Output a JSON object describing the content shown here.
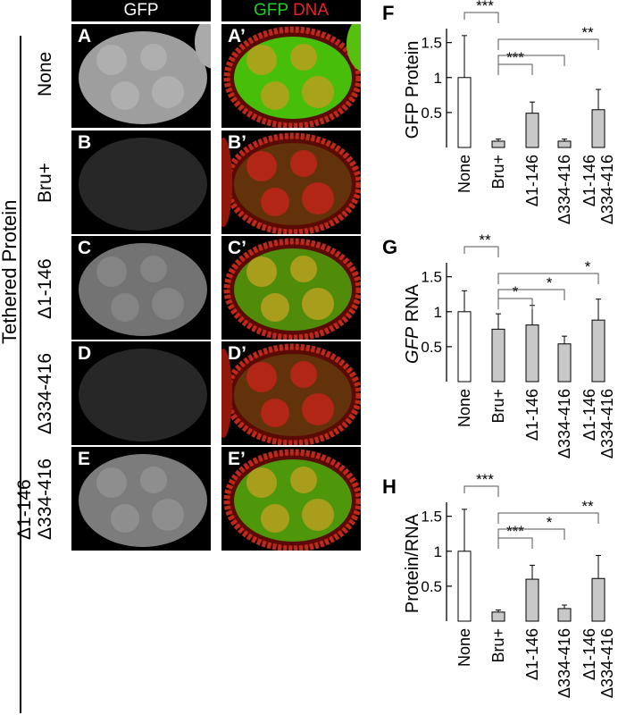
{
  "images": {
    "header_left": "GFP",
    "header_right_green": "GFP",
    "header_right_red": "DNA",
    "side_label": "Tethered Protein",
    "rows": [
      {
        "label": "None",
        "label_lines": [
          "None"
        ],
        "left": "A",
        "right": "A’",
        "gfp_level": 0.75
      },
      {
        "label": "Bru+",
        "label_lines": [
          "Bru+"
        ],
        "left": "B",
        "right": "B’",
        "gfp_level": 0.05
      },
      {
        "label": "Δ1-146",
        "label_lines": [
          "Δ1-146"
        ],
        "left": "C",
        "right": "C’",
        "gfp_level": 0.5
      },
      {
        "label": "Δ334-416",
        "label_lines": [
          "Δ334-416"
        ],
        "left": "D",
        "right": "D’",
        "gfp_level": 0.05
      },
      {
        "label": "Δ1-146 Δ334-416",
        "label_lines": [
          "Δ1-146",
          "Δ334-416"
        ],
        "left": "E",
        "right": "E’",
        "gfp_level": 0.55
      }
    ]
  },
  "chart_data": [
    {
      "panel": "F",
      "type": "bar",
      "ylabel": "GFP Protein",
      "ylabel_parts": [
        {
          "text": "GFP Protein",
          "italic": false
        }
      ],
      "categories": [
        "None",
        "Bru+",
        "Δ1-146",
        "Δ334-416",
        "Δ1-146 Δ334-416"
      ],
      "category_lines": [
        [
          "None"
        ],
        [
          "Bru+"
        ],
        [
          "Δ1-146"
        ],
        [
          "Δ334-416"
        ],
        [
          "Δ1-146",
          "Δ334-416"
        ]
      ],
      "values": [
        1.0,
        0.09,
        0.49,
        0.09,
        0.54
      ],
      "errors": [
        0.6,
        0.03,
        0.16,
        0.03,
        0.29
      ],
      "fills": [
        "#ffffff",
        "#c8c8c8",
        "#c8c8c8",
        "#c8c8c8",
        "#c8c8c8"
      ],
      "ylim": [
        0,
        1.7
      ],
      "yticks": [
        {
          "v": 0.5,
          "label": "0.5"
        },
        {
          "v": 1,
          "label": "1"
        },
        {
          "v": 1.5,
          "label": "1.5"
        }
      ],
      "significance": [
        {
          "from": 0,
          "to": 1,
          "label": "***"
        },
        {
          "from": 1,
          "to": 2,
          "label": "***"
        },
        {
          "from": 1,
          "to": 3,
          "label": ""
        },
        {
          "from": 1,
          "to": 4,
          "label": "**"
        }
      ]
    },
    {
      "panel": "G",
      "type": "bar",
      "ylabel": "GFP RNA",
      "ylabel_parts": [
        {
          "text": "GFP",
          "italic": true
        },
        {
          "text": " RNA",
          "italic": false
        }
      ],
      "categories": [
        "None",
        "Bru+",
        "Δ1-146",
        "Δ334-416",
        "Δ1-146 Δ334-416"
      ],
      "category_lines": [
        [
          "None"
        ],
        [
          "Bru+"
        ],
        [
          "Δ1-146"
        ],
        [
          "Δ334-416"
        ],
        [
          "Δ1-146",
          "Δ334-416"
        ]
      ],
      "values": [
        1.0,
        0.75,
        0.81,
        0.54,
        0.88
      ],
      "errors": [
        0.3,
        0.22,
        0.28,
        0.11,
        0.3
      ],
      "fills": [
        "#ffffff",
        "#c8c8c8",
        "#c8c8c8",
        "#c8c8c8",
        "#c8c8c8"
      ],
      "ylim": [
        0,
        1.7
      ],
      "yticks": [
        {
          "v": 0.5,
          "label": "0.5"
        },
        {
          "v": 1,
          "label": "1"
        },
        {
          "v": 1.5,
          "label": "1.5"
        }
      ],
      "significance": [
        {
          "from": 0,
          "to": 1,
          "label": "**"
        },
        {
          "from": 1,
          "to": 2,
          "label": "*"
        },
        {
          "from": 1,
          "to": 3,
          "label": "*"
        },
        {
          "from": 1,
          "to": 4,
          "label": "*"
        }
      ]
    },
    {
      "panel": "H",
      "type": "bar",
      "ylabel": "Protein/RNA",
      "ylabel_parts": [
        {
          "text": "Protein/RNA",
          "italic": false
        }
      ],
      "categories": [
        "None",
        "Bru+",
        "Δ1-146",
        "Δ334-416",
        "Δ1-146 Δ334-416"
      ],
      "category_lines": [
        [
          "None"
        ],
        [
          "Bru+"
        ],
        [
          "Δ1-146"
        ],
        [
          "Δ334-416"
        ],
        [
          "Δ1-146",
          "Δ334-416"
        ]
      ],
      "values": [
        1.0,
        0.13,
        0.6,
        0.18,
        0.61
      ],
      "errors": [
        0.6,
        0.03,
        0.2,
        0.05,
        0.33
      ],
      "fills": [
        "#ffffff",
        "#c8c8c8",
        "#c8c8c8",
        "#c8c8c8",
        "#c8c8c8"
      ],
      "ylim": [
        0,
        1.7
      ],
      "yticks": [
        {
          "v": 0.5,
          "label": "0.5"
        },
        {
          "v": 1,
          "label": "1"
        },
        {
          "v": 1.5,
          "label": "1.5"
        }
      ],
      "significance": [
        {
          "from": 0,
          "to": 1,
          "label": "***"
        },
        {
          "from": 1,
          "to": 2,
          "label": "***"
        },
        {
          "from": 1,
          "to": 3,
          "label": "*"
        },
        {
          "from": 1,
          "to": 4,
          "label": "**"
        }
      ]
    }
  ]
}
